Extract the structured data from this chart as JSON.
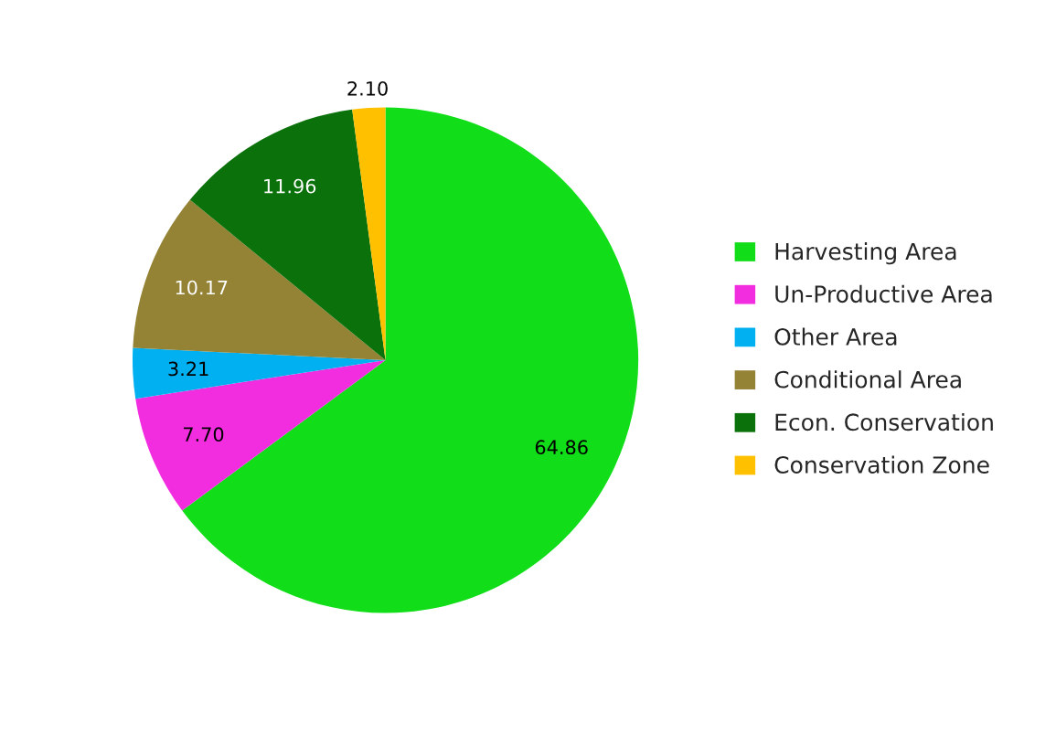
{
  "chart_data": {
    "type": "pie",
    "categories": [
      "Harvesting Area",
      "Un-Productive Area",
      "Other Area",
      "Conditional Area",
      "Econ. Conservation",
      "Conservation Zone"
    ],
    "values": [
      64.86,
      7.7,
      3.21,
      10.17,
      11.96,
      2.1
    ],
    "colors": [
      "#11dd19",
      "#f22ddf",
      "#00b0f0",
      "#948235",
      "#0b720b",
      "#ffc000"
    ],
    "value_labels": [
      "64.86",
      "7.70",
      "3.21",
      "10.17",
      "11.96",
      "2.10"
    ],
    "legend": "right"
  }
}
